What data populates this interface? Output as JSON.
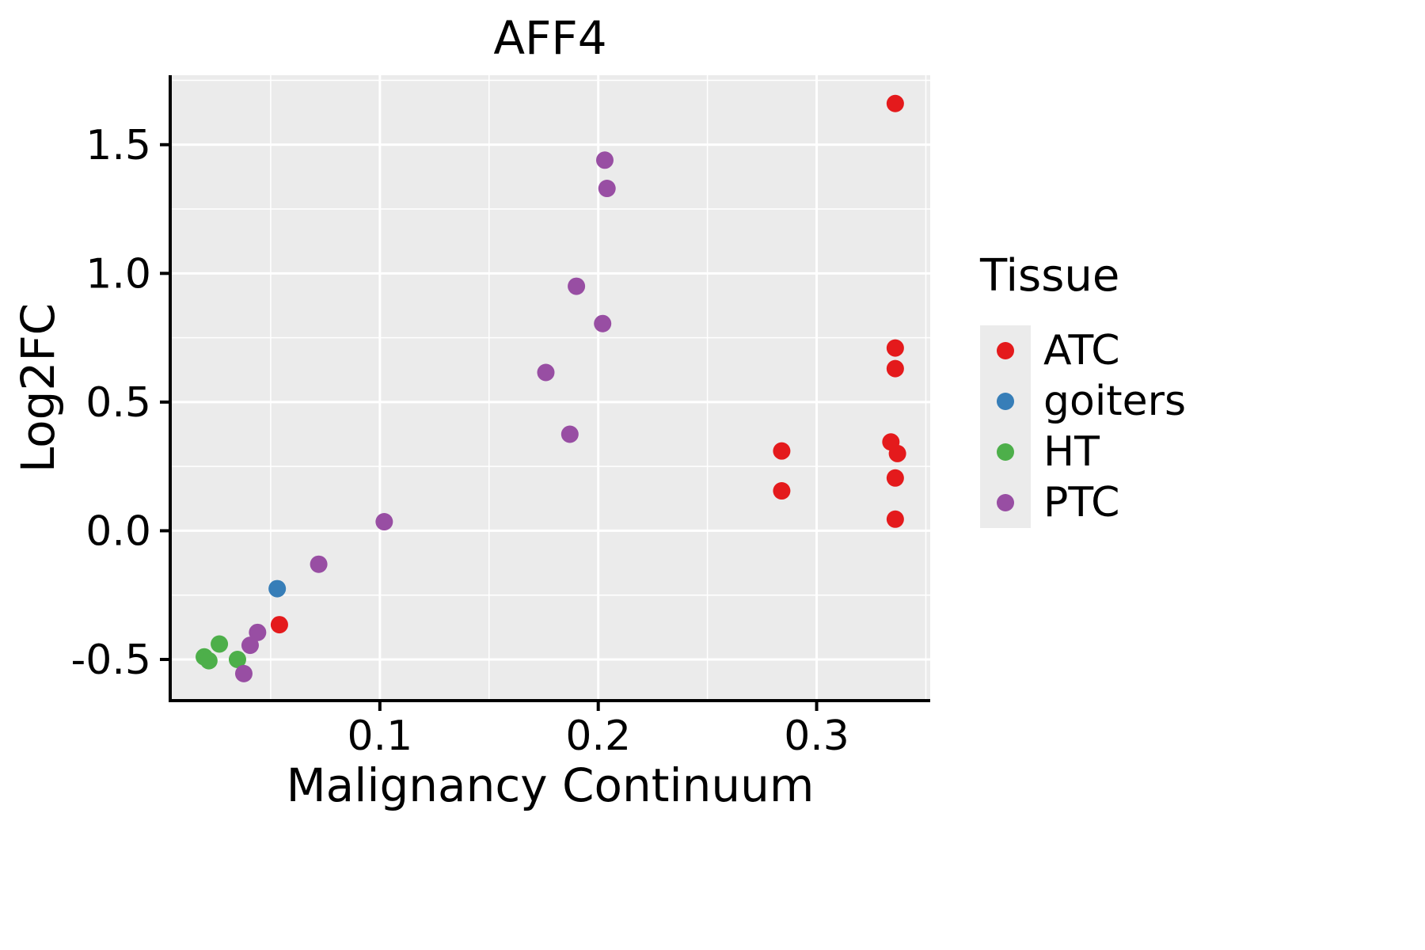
{
  "chart_data": {
    "type": "scatter",
    "title": "AFF4",
    "xlabel": "Malignancy Continuum",
    "ylabel": "Log2FC",
    "legend_title": "Tissue",
    "legend_position": "right",
    "grid": true,
    "panel_bg": "#EBEBEB",
    "grid_color": "#FFFFFF",
    "xlim": [
      0.004,
      0.352
    ],
    "ylim": [
      -0.66,
      1.77
    ],
    "x_ticks": [
      0.1,
      0.2,
      0.3
    ],
    "x_tick_labels": [
      "0.1",
      "0.2",
      "0.3"
    ],
    "y_ticks": [
      -0.5,
      0.0,
      0.5,
      1.0,
      1.5
    ],
    "y_tick_labels": [
      "-0.5",
      "0.0",
      "0.5",
      "1.0",
      "1.5"
    ],
    "x_minor_ticks": [
      0.05,
      0.15,
      0.25,
      0.35
    ],
    "y_minor_ticks": [
      -0.25,
      0.25,
      0.75,
      1.25,
      1.75
    ],
    "series": [
      {
        "name": "ATC",
        "color": "#E41A1C",
        "points": [
          [
            0.336,
            1.66
          ],
          [
            0.336,
            0.71
          ],
          [
            0.336,
            0.63
          ],
          [
            0.334,
            0.345
          ],
          [
            0.337,
            0.3
          ],
          [
            0.336,
            0.205
          ],
          [
            0.336,
            0.045
          ],
          [
            0.284,
            0.31
          ],
          [
            0.284,
            0.155
          ],
          [
            0.054,
            -0.365
          ]
        ]
      },
      {
        "name": "goiters",
        "color": "#377EB8",
        "points": [
          [
            0.053,
            -0.225
          ]
        ]
      },
      {
        "name": "HT",
        "color": "#4DAF4A",
        "points": [
          [
            0.0265,
            -0.44
          ],
          [
            0.0196,
            -0.49
          ],
          [
            0.0217,
            -0.505
          ],
          [
            0.0348,
            -0.5
          ]
        ]
      },
      {
        "name": "PTC",
        "color": "#984EA3",
        "points": [
          [
            0.203,
            1.44
          ],
          [
            0.204,
            1.33
          ],
          [
            0.19,
            0.95
          ],
          [
            0.202,
            0.805
          ],
          [
            0.176,
            0.615
          ],
          [
            0.187,
            0.375
          ],
          [
            0.102,
            0.035
          ],
          [
            0.072,
            -0.13
          ],
          [
            0.044,
            -0.395
          ],
          [
            0.0406,
            -0.445
          ],
          [
            0.0377,
            -0.555
          ]
        ]
      }
    ]
  }
}
